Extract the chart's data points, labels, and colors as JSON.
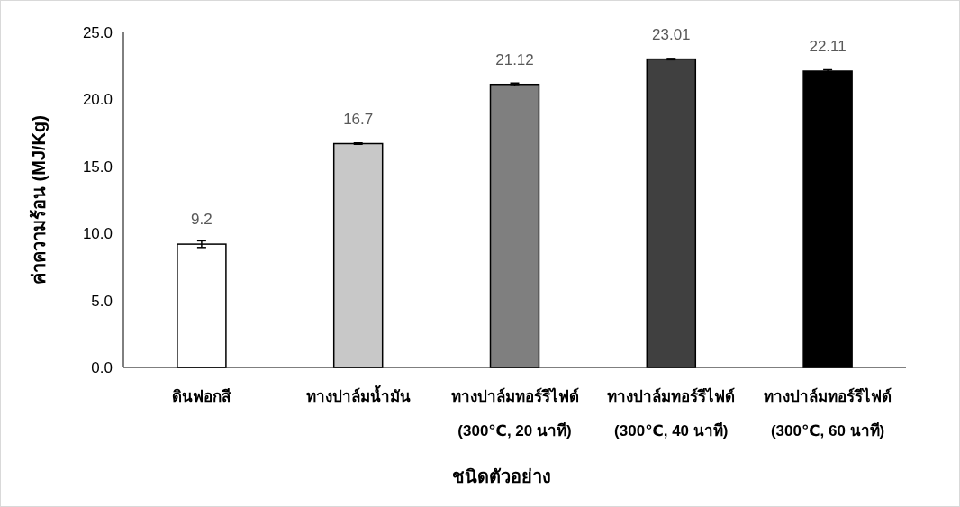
{
  "chart_data": {
    "type": "bar",
    "categories": [
      "ดินฟอกสี",
      "ทางปาล์มน้ำมัน",
      "ทางปาล์มทอร์รีไฟด์\n(300℃, 20 นาที)",
      "ทางปาล์มทอร์รีไฟด์\n(300℃, 40 นาที)",
      "ทางปาล์มทอร์รีไฟด์\n(300℃, 60 นาที)"
    ],
    "values": [
      9.2,
      16.7,
      21.12,
      23.01,
      22.11
    ],
    "errors": [
      0.25,
      0.05,
      0.1,
      0.05,
      0.1
    ],
    "colors": [
      "#ffffff",
      "#c8c8c8",
      "#7f7f7f",
      "#404040",
      "#000000"
    ],
    "data_labels": true,
    "xlabel": "ชนิดตัวอย่าง",
    "ylabel": "ค่าความร้อน (MJ/Kg)",
    "ylim": [
      0,
      25
    ],
    "yticks": [
      {
        "value": 0,
        "label": "0.0"
      },
      {
        "value": 5,
        "label": "5.0"
      },
      {
        "value": 10,
        "label": "10.0"
      },
      {
        "value": 15,
        "label": "15.0"
      },
      {
        "value": 20,
        "label": "20.0"
      },
      {
        "value": 25,
        "label": "25.0"
      }
    ],
    "grid": false
  }
}
